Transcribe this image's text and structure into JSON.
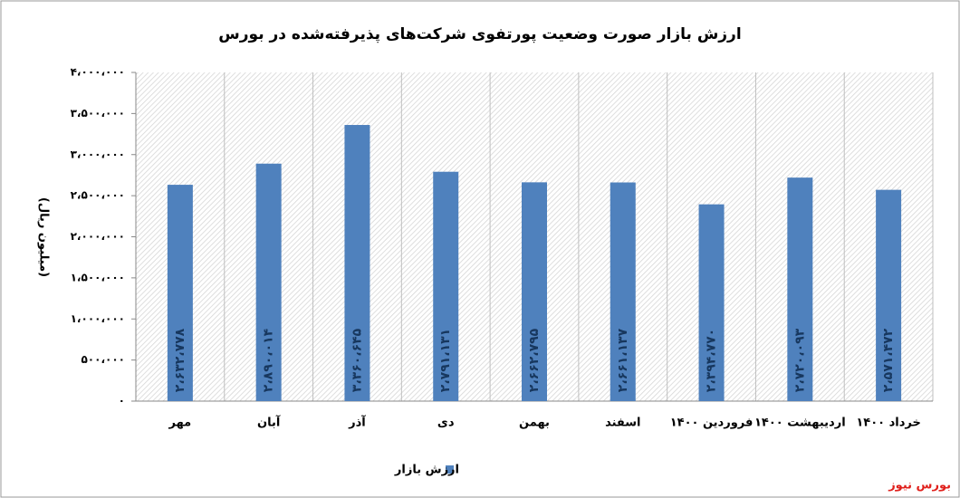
{
  "chart_data": {
    "type": "bar",
    "title": "ارزش بازار صورت وضعیت پورتفوی شرکت‌های پذیرفته‌شده در بورس",
    "y_label": "(میلیون ریال)",
    "source": "بورس نیوز",
    "categories": [
      "مهر",
      "آبان",
      "آذر",
      "دی",
      "بهمن",
      "اسفند",
      "فروردین ۱۴۰۰",
      "اردیبهشت ۱۴۰۰",
      "خرداد ۱۴۰۰"
    ],
    "series": [
      {
        "name": "ارزش بازار",
        "color": "#4f81bd",
        "values": [
          2632778,
          2890014,
          3360645,
          2791131,
          2662795,
          2661137,
          2394770,
          2720093,
          2571472
        ],
        "value_labels": [
          "۲،۶۳۲،۷۷۸",
          "۲،۸۹۰،۰۱۴",
          "۳،۳۶۰،۶۴۵",
          "۲،۷۹۱،۱۳۱",
          "۲،۶۶۲،۷۹۵",
          "۲،۶۶۱،۱۳۷",
          "۲،۳۹۴،۷۷۰",
          "۲،۷۲۰،۰۹۳",
          "۲،۵۷۱،۴۷۲"
        ]
      }
    ],
    "ylim": [
      0,
      4000000
    ],
    "yticks": [
      {
        "value": 0,
        "label": "۰"
      },
      {
        "value": 500000,
        "label": "۵۰۰،۰۰۰"
      },
      {
        "value": 1000000,
        "label": "۱،۰۰۰،۰۰۰"
      },
      {
        "value": 1500000,
        "label": "۱،۵۰۰،۰۰۰"
      },
      {
        "value": 2000000,
        "label": "۲،۰۰۰،۰۰۰"
      },
      {
        "value": 2500000,
        "label": "۲،۵۰۰،۰۰۰"
      },
      {
        "value": 3000000,
        "label": "۳،۰۰۰،۰۰۰"
      },
      {
        "value": 3500000,
        "label": "۳،۵۰۰،۰۰۰"
      },
      {
        "value": 4000000,
        "label": "۴،۰۰۰،۰۰۰"
      }
    ],
    "grid": true
  }
}
